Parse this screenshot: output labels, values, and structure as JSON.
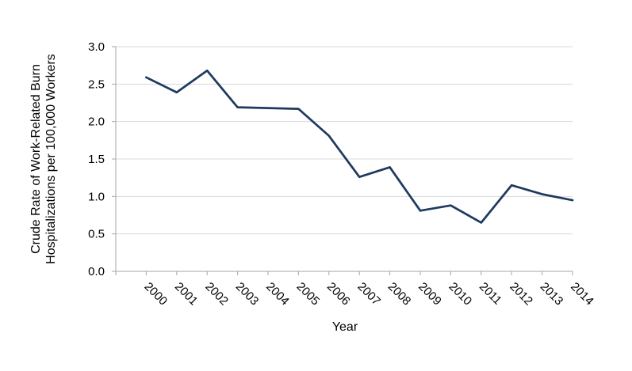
{
  "chart_data": {
    "type": "line",
    "title": "",
    "xlabel": "Year",
    "ylabel_lines": [
      "Crude Rate of Work-Related Burn",
      "Hospitalizations per 100,000 Workers"
    ],
    "categories": [
      "2000",
      "2001",
      "2002",
      "2003",
      "2004",
      "2005",
      "2006",
      "2007",
      "2008",
      "2009",
      "2010",
      "2011",
      "2012",
      "2013",
      "2014"
    ],
    "y_ticks": [
      "0.0",
      "0.5",
      "1.0",
      "1.5",
      "2.0",
      "2.5",
      "3.0"
    ],
    "ylim": [
      0,
      3.0
    ],
    "grid": true,
    "legend": "none",
    "series": [
      {
        "color": "#1f3a5f",
        "values": [
          2.59,
          2.39,
          2.68,
          2.19,
          2.18,
          2.17,
          1.81,
          1.26,
          1.39,
          0.81,
          0.88,
          0.65,
          1.15,
          1.03,
          0.95
        ]
      }
    ],
    "colors": {
      "grid": "#d9d9d9",
      "axis": "#a6a6a6"
    }
  }
}
